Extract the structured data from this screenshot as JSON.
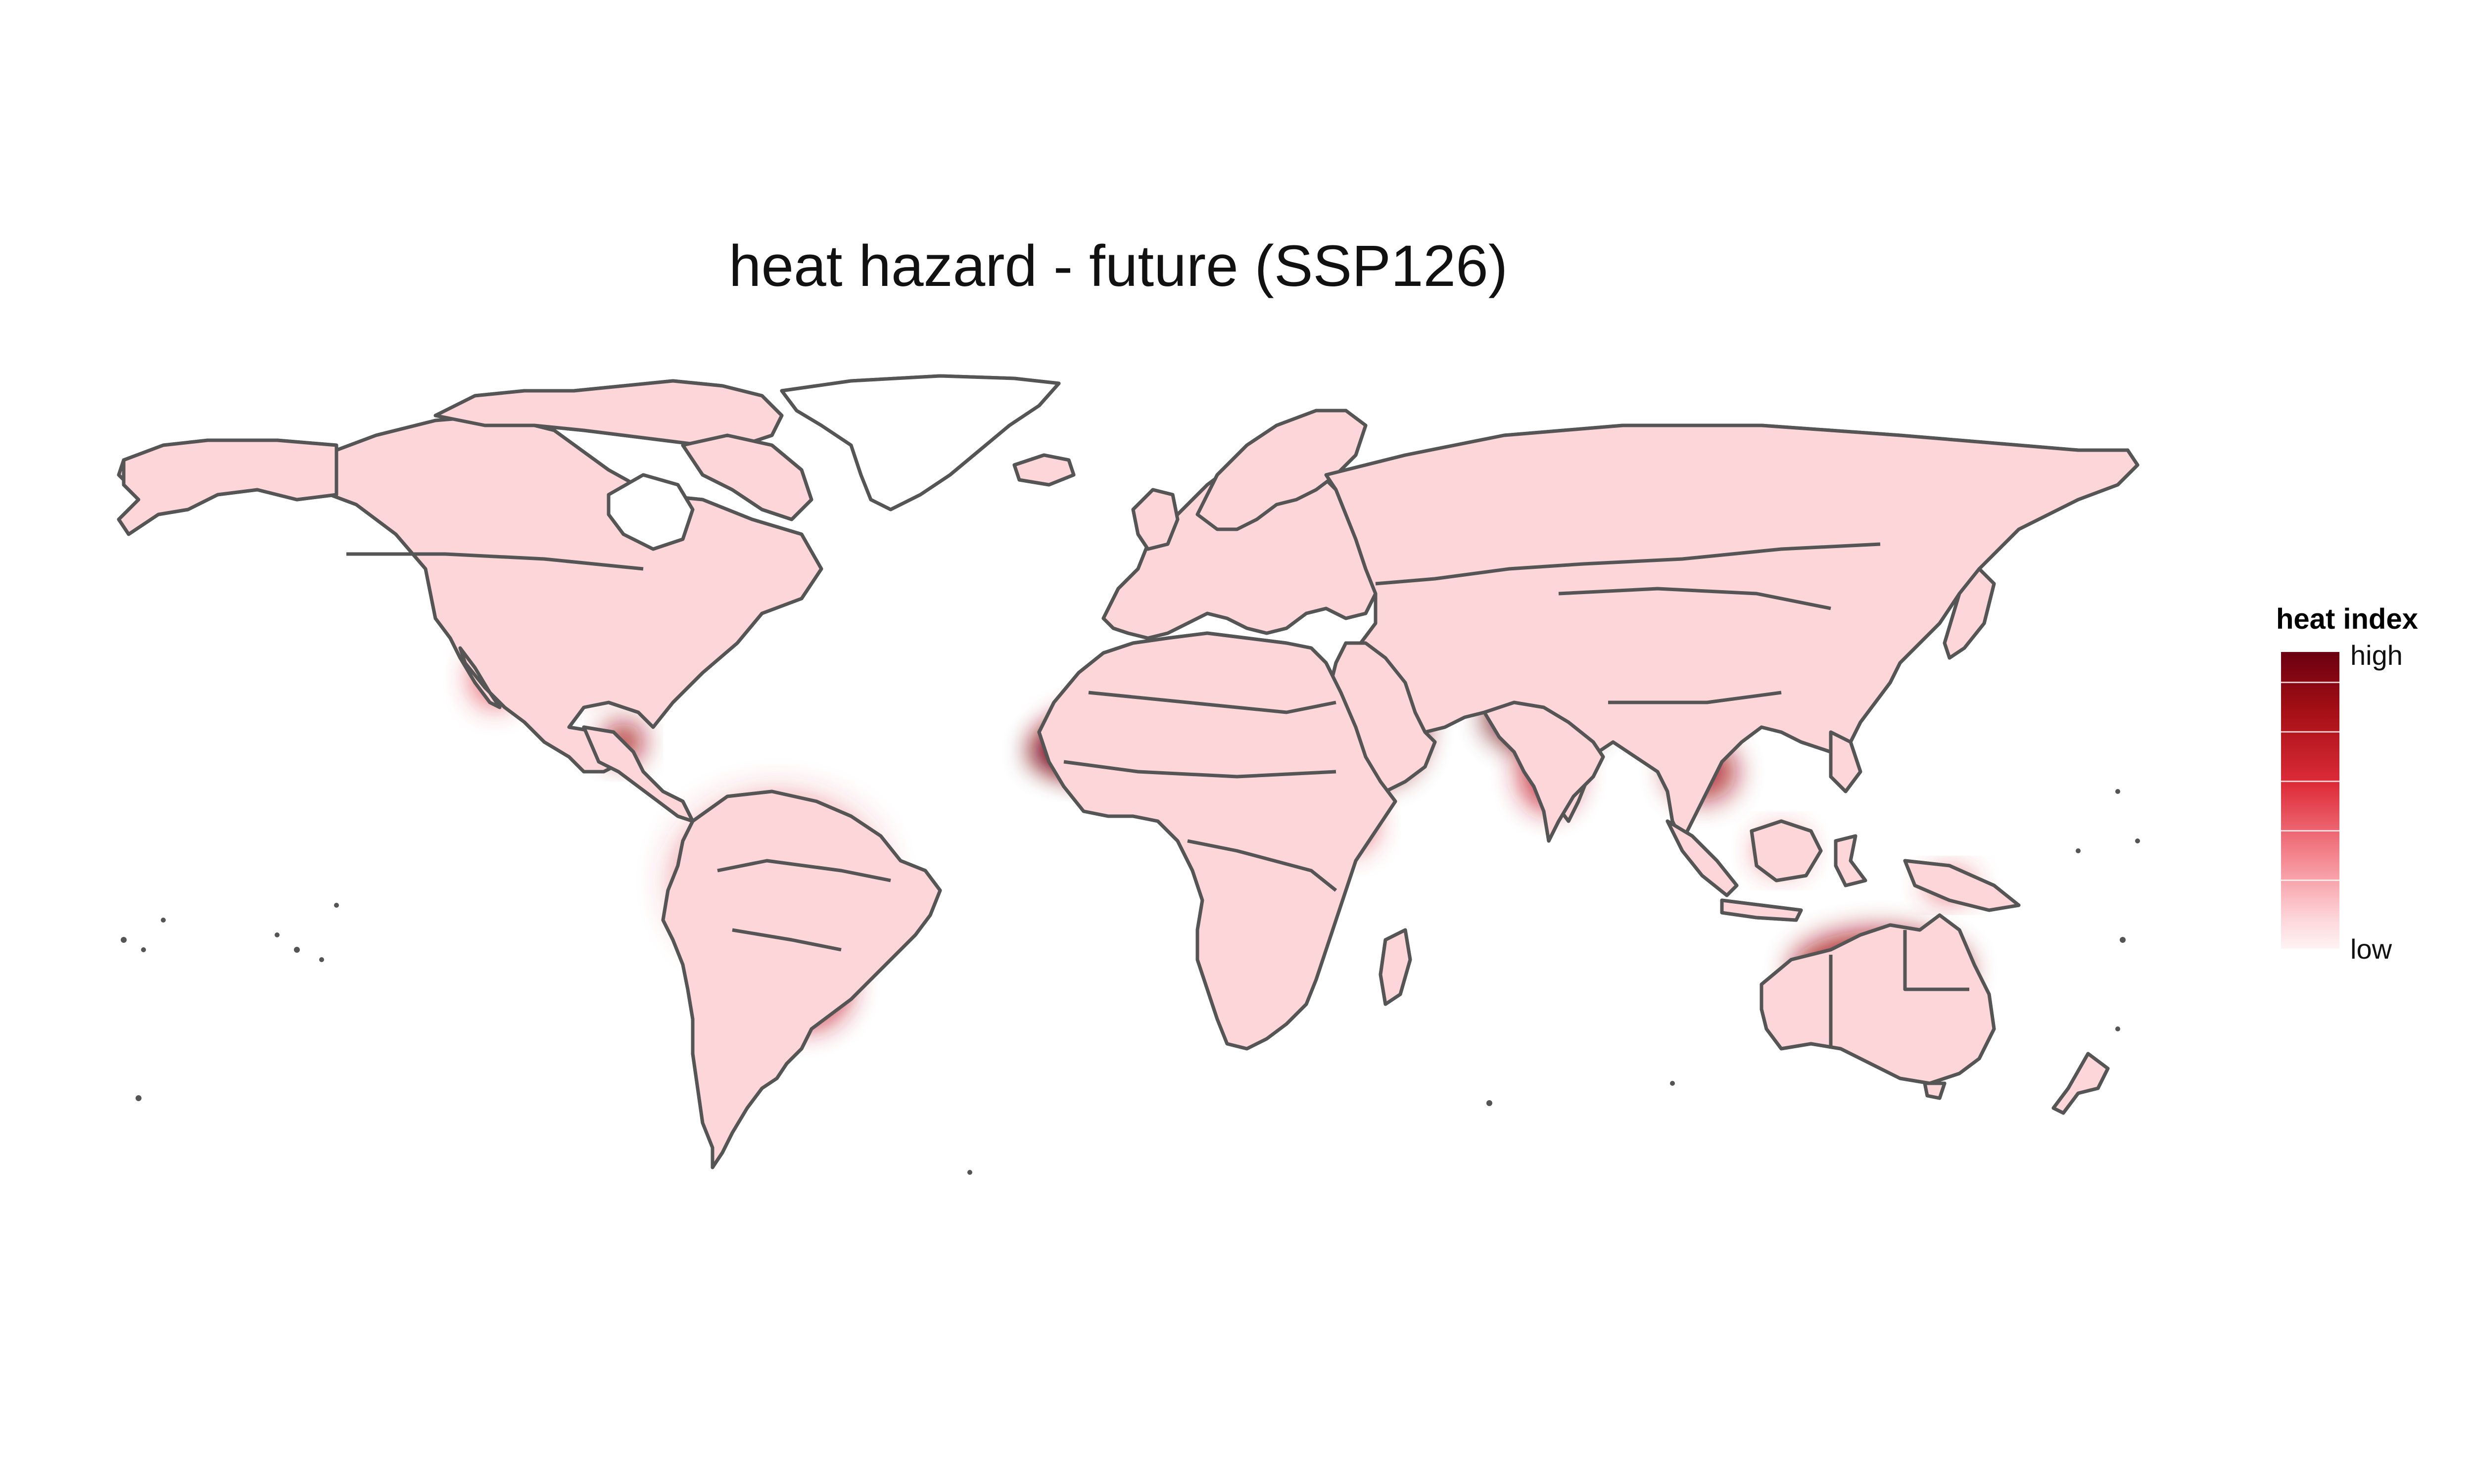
{
  "title": "heat hazard - future (SSP126)",
  "legend": {
    "title": "heat index",
    "high_label": "high",
    "low_label": "low",
    "colors": [
      "#6b0010",
      "#a50f15",
      "#de2d3a",
      "#f58a93",
      "#fdd6da",
      "#fff3f4"
    ]
  },
  "map": {
    "projection": "equirectangular world map",
    "land_color": "#fdd6da",
    "border_color": "#555555",
    "ocean_color": "#ffffff",
    "hotspots": [
      {
        "region": "Amazon basin",
        "level": "very high"
      },
      {
        "region": "West African Sahel",
        "level": "very high"
      },
      {
        "region": "Sudan / Chad",
        "level": "very high"
      },
      {
        "region": "Arabian Peninsula",
        "level": "very high"
      },
      {
        "region": "Indian subcontinent",
        "level": "very high"
      },
      {
        "region": "Northern Australia",
        "level": "high"
      },
      {
        "region": "Mainland Southeast Asia",
        "level": "high"
      },
      {
        "region": "Central America / Yucatan",
        "level": "high"
      },
      {
        "region": "Southern United States / Mexico",
        "level": "medium"
      },
      {
        "region": "Paraguay / Chaco",
        "level": "high"
      },
      {
        "region": "Indonesia / Borneo",
        "level": "medium"
      },
      {
        "region": "East Africa",
        "level": "medium"
      },
      {
        "region": "Southern China",
        "level": "medium"
      }
    ]
  }
}
